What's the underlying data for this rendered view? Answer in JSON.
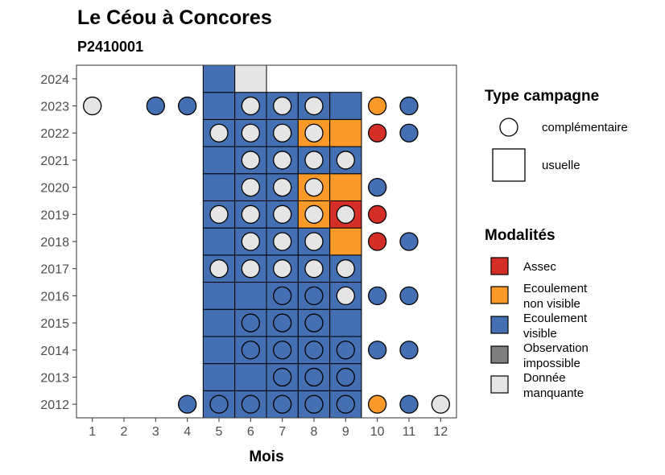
{
  "chart_data": {
    "type": "heatmap",
    "title": "Le Céou à Concores",
    "subtitle": "P2410001",
    "xlabel": "Mois",
    "ylabel": "",
    "x_ticks": [
      "1",
      "2",
      "3",
      "4",
      "5",
      "6",
      "7",
      "8",
      "9",
      "10",
      "11",
      "12"
    ],
    "y_ticks": [
      "2012",
      "2013",
      "2014",
      "2015",
      "2016",
      "2017",
      "2018",
      "2019",
      "2020",
      "2021",
      "2022",
      "2023",
      "2024"
    ],
    "xlim": [
      0.5,
      12.5
    ],
    "ylim": [
      2011.5,
      2024.5
    ],
    "grid": false,
    "colors": {
      "Assec": "#d42e26",
      "Ecoulement non visible": "#fb9a29",
      "Ecoulement visible": "#4470b3",
      "Observation impossible": "#7f7f7f",
      "Donnée manquante": "#e5e5e5"
    },
    "legend_type": {
      "title": "Type campagne",
      "placement": "right",
      "items": [
        {
          "label": "complémentaire",
          "shape": "circle"
        },
        {
          "label": "usuelle",
          "shape": "square"
        }
      ]
    },
    "legend_modalites": {
      "title": "Modalités",
      "placement": "right",
      "items": [
        {
          "key": "Assec",
          "lines": [
            "Assec"
          ]
        },
        {
          "key": "Ecoulement non visible",
          "lines": [
            "Ecoulement",
            "non visible"
          ]
        },
        {
          "key": "Ecoulement visible",
          "lines": [
            "Ecoulement",
            "visible"
          ]
        },
        {
          "key": "Observation impossible",
          "lines": [
            "Observation",
            "impossible"
          ]
        },
        {
          "key": "Donnée manquante",
          "lines": [
            "Donnée",
            "manquante"
          ]
        }
      ]
    },
    "usuelle": [
      {
        "year": 2012,
        "month": 5,
        "value": "Ecoulement visible"
      },
      {
        "year": 2012,
        "month": 6,
        "value": "Ecoulement visible"
      },
      {
        "year": 2012,
        "month": 7,
        "value": "Ecoulement visible"
      },
      {
        "year": 2012,
        "month": 8,
        "value": "Ecoulement visible"
      },
      {
        "year": 2012,
        "month": 9,
        "value": "Ecoulement visible"
      },
      {
        "year": 2013,
        "month": 5,
        "value": "Ecoulement visible"
      },
      {
        "year": 2013,
        "month": 6,
        "value": "Ecoulement visible"
      },
      {
        "year": 2013,
        "month": 7,
        "value": "Ecoulement visible"
      },
      {
        "year": 2013,
        "month": 8,
        "value": "Ecoulement visible"
      },
      {
        "year": 2013,
        "month": 9,
        "value": "Ecoulement visible"
      },
      {
        "year": 2014,
        "month": 5,
        "value": "Ecoulement visible"
      },
      {
        "year": 2014,
        "month": 6,
        "value": "Ecoulement visible"
      },
      {
        "year": 2014,
        "month": 7,
        "value": "Ecoulement visible"
      },
      {
        "year": 2014,
        "month": 8,
        "value": "Ecoulement visible"
      },
      {
        "year": 2014,
        "month": 9,
        "value": "Ecoulement visible"
      },
      {
        "year": 2015,
        "month": 5,
        "value": "Ecoulement visible"
      },
      {
        "year": 2015,
        "month": 6,
        "value": "Ecoulement visible"
      },
      {
        "year": 2015,
        "month": 7,
        "value": "Ecoulement visible"
      },
      {
        "year": 2015,
        "month": 8,
        "value": "Ecoulement visible"
      },
      {
        "year": 2015,
        "month": 9,
        "value": "Ecoulement visible"
      },
      {
        "year": 2016,
        "month": 5,
        "value": "Ecoulement visible"
      },
      {
        "year": 2016,
        "month": 6,
        "value": "Ecoulement visible"
      },
      {
        "year": 2016,
        "month": 7,
        "value": "Ecoulement visible"
      },
      {
        "year": 2016,
        "month": 8,
        "value": "Ecoulement visible"
      },
      {
        "year": 2016,
        "month": 9,
        "value": "Ecoulement visible"
      },
      {
        "year": 2017,
        "month": 5,
        "value": "Ecoulement visible"
      },
      {
        "year": 2017,
        "month": 6,
        "value": "Ecoulement visible"
      },
      {
        "year": 2017,
        "month": 7,
        "value": "Ecoulement visible"
      },
      {
        "year": 2017,
        "month": 8,
        "value": "Ecoulement visible"
      },
      {
        "year": 2017,
        "month": 9,
        "value": "Ecoulement visible"
      },
      {
        "year": 2018,
        "month": 5,
        "value": "Ecoulement visible"
      },
      {
        "year": 2018,
        "month": 6,
        "value": "Ecoulement visible"
      },
      {
        "year": 2018,
        "month": 7,
        "value": "Ecoulement visible"
      },
      {
        "year": 2018,
        "month": 8,
        "value": "Ecoulement visible"
      },
      {
        "year": 2018,
        "month": 9,
        "value": "Ecoulement non visible"
      },
      {
        "year": 2019,
        "month": 5,
        "value": "Ecoulement visible"
      },
      {
        "year": 2019,
        "month": 6,
        "value": "Ecoulement visible"
      },
      {
        "year": 2019,
        "month": 7,
        "value": "Ecoulement visible"
      },
      {
        "year": 2019,
        "month": 8,
        "value": "Ecoulement non visible"
      },
      {
        "year": 2019,
        "month": 9,
        "value": "Assec"
      },
      {
        "year": 2020,
        "month": 5,
        "value": "Ecoulement visible"
      },
      {
        "year": 2020,
        "month": 6,
        "value": "Ecoulement visible"
      },
      {
        "year": 2020,
        "month": 7,
        "value": "Ecoulement visible"
      },
      {
        "year": 2020,
        "month": 8,
        "value": "Ecoulement non visible"
      },
      {
        "year": 2020,
        "month": 9,
        "value": "Ecoulement non visible"
      },
      {
        "year": 2021,
        "month": 5,
        "value": "Ecoulement visible"
      },
      {
        "year": 2021,
        "month": 6,
        "value": "Ecoulement visible"
      },
      {
        "year": 2021,
        "month": 7,
        "value": "Ecoulement visible"
      },
      {
        "year": 2021,
        "month": 8,
        "value": "Ecoulement visible"
      },
      {
        "year": 2021,
        "month": 9,
        "value": "Ecoulement visible"
      },
      {
        "year": 2022,
        "month": 5,
        "value": "Ecoulement visible"
      },
      {
        "year": 2022,
        "month": 6,
        "value": "Ecoulement visible"
      },
      {
        "year": 2022,
        "month": 7,
        "value": "Ecoulement visible"
      },
      {
        "year": 2022,
        "month": 8,
        "value": "Ecoulement non visible"
      },
      {
        "year": 2022,
        "month": 9,
        "value": "Ecoulement non visible"
      },
      {
        "year": 2023,
        "month": 5,
        "value": "Ecoulement visible"
      },
      {
        "year": 2023,
        "month": 6,
        "value": "Ecoulement visible"
      },
      {
        "year": 2023,
        "month": 7,
        "value": "Ecoulement visible"
      },
      {
        "year": 2023,
        "month": 8,
        "value": "Ecoulement visible"
      },
      {
        "year": 2023,
        "month": 9,
        "value": "Ecoulement visible"
      },
      {
        "year": 2024,
        "month": 5,
        "value": "Ecoulement visible"
      },
      {
        "year": 2024,
        "month": 6,
        "value": "Donnée manquante"
      }
    ],
    "complementaire": [
      {
        "year": 2012,
        "month": 4,
        "value": "Ecoulement visible"
      },
      {
        "year": 2012,
        "month": 5,
        "value": "Ecoulement visible"
      },
      {
        "year": 2012,
        "month": 6,
        "value": "Ecoulement visible"
      },
      {
        "year": 2012,
        "month": 7,
        "value": "Ecoulement visible"
      },
      {
        "year": 2012,
        "month": 8,
        "value": "Ecoulement visible"
      },
      {
        "year": 2012,
        "month": 9,
        "value": "Ecoulement visible"
      },
      {
        "year": 2012,
        "month": 10,
        "value": "Ecoulement non visible"
      },
      {
        "year": 2012,
        "month": 11,
        "value": "Ecoulement visible"
      },
      {
        "year": 2012,
        "month": 12,
        "value": "Donnée manquante"
      },
      {
        "year": 2013,
        "month": 7,
        "value": "Ecoulement visible"
      },
      {
        "year": 2013,
        "month": 8,
        "value": "Ecoulement visible"
      },
      {
        "year": 2013,
        "month": 9,
        "value": "Ecoulement visible"
      },
      {
        "year": 2014,
        "month": 6,
        "value": "Ecoulement visible"
      },
      {
        "year": 2014,
        "month": 7,
        "value": "Ecoulement visible"
      },
      {
        "year": 2014,
        "month": 8,
        "value": "Ecoulement visible"
      },
      {
        "year": 2014,
        "month": 9,
        "value": "Ecoulement visible"
      },
      {
        "year": 2014,
        "month": 10,
        "value": "Ecoulement visible"
      },
      {
        "year": 2014,
        "month": 11,
        "value": "Ecoulement visible"
      },
      {
        "year": 2015,
        "month": 6,
        "value": "Ecoulement visible"
      },
      {
        "year": 2015,
        "month": 7,
        "value": "Ecoulement visible"
      },
      {
        "year": 2015,
        "month": 8,
        "value": "Ecoulement visible"
      },
      {
        "year": 2016,
        "month": 7,
        "value": "Ecoulement visible"
      },
      {
        "year": 2016,
        "month": 8,
        "value": "Ecoulement visible"
      },
      {
        "year": 2016,
        "month": 9,
        "value": "Donnée manquante"
      },
      {
        "year": 2016,
        "month": 10,
        "value": "Ecoulement visible"
      },
      {
        "year": 2016,
        "month": 11,
        "value": "Ecoulement visible"
      },
      {
        "year": 2017,
        "month": 5,
        "value": "Donnée manquante"
      },
      {
        "year": 2017,
        "month": 6,
        "value": "Donnée manquante"
      },
      {
        "year": 2017,
        "month": 7,
        "value": "Donnée manquante"
      },
      {
        "year": 2017,
        "month": 8,
        "value": "Donnée manquante"
      },
      {
        "year": 2017,
        "month": 9,
        "value": "Donnée manquante"
      },
      {
        "year": 2018,
        "month": 6,
        "value": "Donnée manquante"
      },
      {
        "year": 2018,
        "month": 7,
        "value": "Donnée manquante"
      },
      {
        "year": 2018,
        "month": 8,
        "value": "Donnée manquante"
      },
      {
        "year": 2018,
        "month": 10,
        "value": "Assec"
      },
      {
        "year": 2018,
        "month": 11,
        "value": "Ecoulement visible"
      },
      {
        "year": 2019,
        "month": 5,
        "value": "Donnée manquante"
      },
      {
        "year": 2019,
        "month": 6,
        "value": "Donnée manquante"
      },
      {
        "year": 2019,
        "month": 7,
        "value": "Donnée manquante"
      },
      {
        "year": 2019,
        "month": 8,
        "value": "Donnée manquante"
      },
      {
        "year": 2019,
        "month": 9,
        "value": "Donnée manquante"
      },
      {
        "year": 2019,
        "month": 10,
        "value": "Assec"
      },
      {
        "year": 2020,
        "month": 6,
        "value": "Donnée manquante"
      },
      {
        "year": 2020,
        "month": 7,
        "value": "Donnée manquante"
      },
      {
        "year": 2020,
        "month": 8,
        "value": "Donnée manquante"
      },
      {
        "year": 2020,
        "month": 10,
        "value": "Ecoulement visible"
      },
      {
        "year": 2021,
        "month": 6,
        "value": "Donnée manquante"
      },
      {
        "year": 2021,
        "month": 7,
        "value": "Donnée manquante"
      },
      {
        "year": 2021,
        "month": 8,
        "value": "Donnée manquante"
      },
      {
        "year": 2021,
        "month": 9,
        "value": "Donnée manquante"
      },
      {
        "year": 2022,
        "month": 5,
        "value": "Donnée manquante"
      },
      {
        "year": 2022,
        "month": 6,
        "value": "Donnée manquante"
      },
      {
        "year": 2022,
        "month": 7,
        "value": "Donnée manquante"
      },
      {
        "year": 2022,
        "month": 8,
        "value": "Donnée manquante"
      },
      {
        "year": 2022,
        "month": 10,
        "value": "Assec"
      },
      {
        "year": 2022,
        "month": 11,
        "value": "Ecoulement visible"
      },
      {
        "year": 2023,
        "month": 1,
        "value": "Donnée manquante"
      },
      {
        "year": 2023,
        "month": 3,
        "value": "Ecoulement visible"
      },
      {
        "year": 2023,
        "month": 4,
        "value": "Ecoulement visible"
      },
      {
        "year": 2023,
        "month": 6,
        "value": "Donnée manquante"
      },
      {
        "year": 2023,
        "month": 7,
        "value": "Donnée manquante"
      },
      {
        "year": 2023,
        "month": 8,
        "value": "Donnée manquante"
      },
      {
        "year": 2023,
        "month": 10,
        "value": "Ecoulement non visible"
      },
      {
        "year": 2023,
        "month": 11,
        "value": "Ecoulement visible"
      }
    ]
  }
}
